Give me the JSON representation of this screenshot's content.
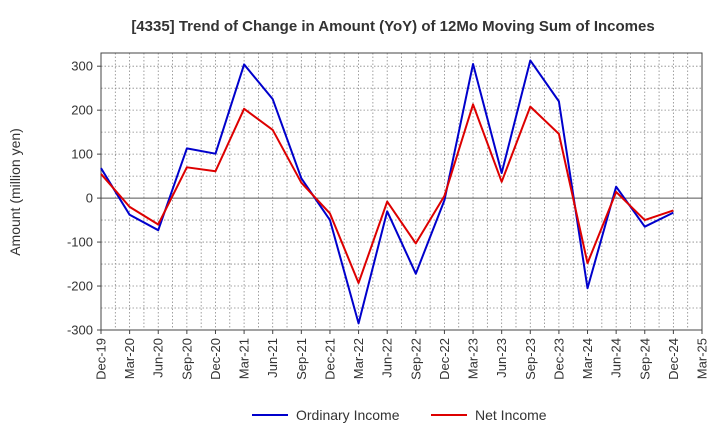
{
  "chart_data": {
    "type": "line",
    "title": "[4335]  Trend of Change in Amount (YoY) of 12Mo Moving Sum of Incomes",
    "xlabel": "",
    "ylabel": "Amount (million yen)",
    "ylim": [
      -300,
      330
    ],
    "yticks": [
      300,
      200,
      100,
      0,
      -100,
      -200,
      -300
    ],
    "grid": true,
    "legend_position": "bottom",
    "x": [
      "Dec-19",
      "Mar-20",
      "Jun-20",
      "Sep-20",
      "Dec-20",
      "Mar-21",
      "Jun-21",
      "Sep-21",
      "Dec-21",
      "Mar-22",
      "Jun-22",
      "Sep-22",
      "Dec-22",
      "Mar-23",
      "Jun-23",
      "Sep-23",
      "Dec-23",
      "Mar-24",
      "Jun-24",
      "Sep-24",
      "Dec-24",
      "Mar-25"
    ],
    "series": [
      {
        "name": "Ordinary Income",
        "color": "#0000cc",
        "values": [
          68,
          -38,
          -73,
          113,
          101,
          304,
          225,
          45,
          -50,
          -285,
          -30,
          -172,
          -5,
          305,
          57,
          313,
          220,
          -205,
          26,
          -65,
          -33,
          null
        ]
      },
      {
        "name": "Net Income",
        "color": "#dd0000",
        "values": [
          55,
          -20,
          -60,
          70,
          61,
          203,
          155,
          35,
          -35,
          -193,
          -8,
          -103,
          5,
          213,
          37,
          208,
          146,
          -148,
          14,
          -50,
          -28,
          null
        ]
      }
    ]
  }
}
